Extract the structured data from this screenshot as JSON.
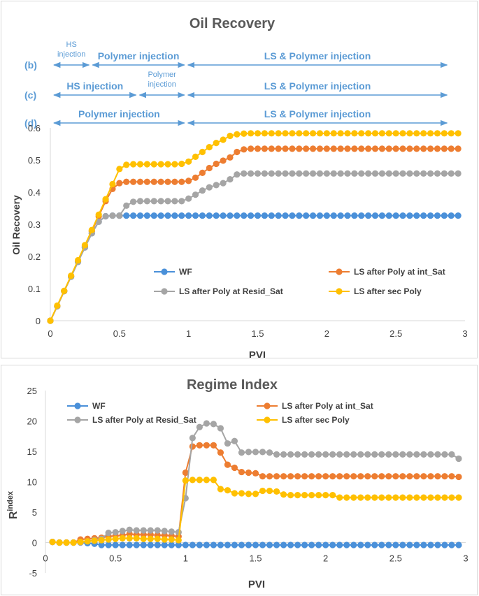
{
  "chart_data": [
    {
      "type": "line",
      "title": "Oil Recovery",
      "xlabel": "PVI",
      "ylabel": "Oil Recovery",
      "xlim": [
        0,
        3
      ],
      "ylim": [
        0,
        0.6
      ],
      "x_ticks": [
        "0",
        "0.5",
        "1",
        "1.5",
        "2",
        "2.5",
        "3"
      ],
      "y_ticks": [
        "0",
        "0.1",
        "0.2",
        "0.3",
        "0.4",
        "0.5",
        "0.6"
      ],
      "grid": false,
      "legend_placement": "bottom",
      "phase_annotations": [
        {
          "row_label": "(b)",
          "segments": [
            {
              "label": "HS injection",
              "from": 0.0,
              "to": 0.28
            },
            {
              "label": "Polymer injection",
              "from": 0.28,
              "to": 0.97
            },
            {
              "label": "LS & Polymer injection",
              "from": 0.97,
              "to": 2.87
            }
          ]
        },
        {
          "row_label": "(c)",
          "segments": [
            {
              "label": "HS injection",
              "from": 0.0,
              "to": 0.62
            },
            {
              "label": "Polymer injection",
              "from": 0.62,
              "to": 0.97
            },
            {
              "label": "LS & Polymer injection",
              "from": 0.97,
              "to": 2.87
            }
          ]
        },
        {
          "row_label": "(d)",
          "segments": [
            {
              "label": "Polymer injection",
              "from": 0.0,
              "to": 0.97
            },
            {
              "label": "LS & Polymer injection",
              "from": 0.97,
              "to": 2.87
            }
          ]
        }
      ],
      "series": [
        {
          "name": "WF",
          "color": "#4a90d9",
          "x_start": 0,
          "x_step": 0.05,
          "values": [
            0,
            0.045,
            0.092,
            0.137,
            0.183,
            0.228,
            0.272,
            0.308,
            0.325,
            0.327,
            0.327,
            0.327,
            0.327,
            0.327,
            0.327,
            0.327,
            0.327,
            0.327,
            0.327,
            0.327,
            0.327,
            0.327,
            0.327,
            0.327,
            0.327,
            0.327,
            0.327,
            0.327,
            0.327,
            0.327,
            0.327,
            0.327,
            0.327,
            0.327,
            0.327,
            0.327,
            0.327,
            0.327,
            0.327,
            0.327,
            0.327,
            0.327,
            0.327,
            0.327,
            0.327,
            0.327,
            0.327,
            0.327,
            0.327,
            0.327,
            0.327,
            0.327,
            0.327,
            0.327,
            0.327,
            0.327,
            0.327,
            0.327,
            0.327,
            0.327
          ]
        },
        {
          "name": "LS after Poly at int_Sat",
          "color": "#ed7d31",
          "x_start": 0,
          "x_step": 0.05,
          "values": [
            0,
            0.045,
            0.092,
            0.138,
            0.185,
            0.232,
            0.278,
            0.325,
            0.372,
            0.41,
            0.428,
            0.432,
            0.432,
            0.432,
            0.432,
            0.432,
            0.432,
            0.432,
            0.432,
            0.432,
            0.435,
            0.445,
            0.46,
            0.475,
            0.488,
            0.498,
            0.508,
            0.525,
            0.533,
            0.535,
            0.535,
            0.535,
            0.535,
            0.535,
            0.535,
            0.535,
            0.535,
            0.535,
            0.535,
            0.535,
            0.535,
            0.535,
            0.535,
            0.535,
            0.535,
            0.535,
            0.535,
            0.535,
            0.535,
            0.535,
            0.535,
            0.535,
            0.535,
            0.535,
            0.535,
            0.535,
            0.535,
            0.535,
            0.535,
            0.535
          ]
        },
        {
          "name": "LS after Poly at Resid_Sat",
          "color": "#a5a5a5",
          "x_start": 0,
          "x_step": 0.05,
          "values": [
            0,
            0.045,
            0.092,
            0.137,
            0.183,
            0.228,
            0.272,
            0.308,
            0.325,
            0.327,
            0.327,
            0.358,
            0.37,
            0.372,
            0.372,
            0.372,
            0.372,
            0.372,
            0.372,
            0.372,
            0.38,
            0.392,
            0.405,
            0.415,
            0.422,
            0.428,
            0.44,
            0.455,
            0.458,
            0.458,
            0.458,
            0.458,
            0.458,
            0.458,
            0.458,
            0.458,
            0.458,
            0.458,
            0.458,
            0.458,
            0.458,
            0.458,
            0.458,
            0.458,
            0.458,
            0.458,
            0.458,
            0.458,
            0.458,
            0.458,
            0.458,
            0.458,
            0.458,
            0.458,
            0.458,
            0.458,
            0.458,
            0.458,
            0.458,
            0.458
          ]
        },
        {
          "name": "LS after sec Poly",
          "color": "#ffc000",
          "x_start": 0,
          "x_step": 0.05,
          "values": [
            0,
            0.047,
            0.093,
            0.14,
            0.188,
            0.235,
            0.282,
            0.33,
            0.378,
            0.425,
            0.472,
            0.485,
            0.487,
            0.487,
            0.487,
            0.487,
            0.487,
            0.487,
            0.487,
            0.488,
            0.495,
            0.51,
            0.525,
            0.54,
            0.553,
            0.563,
            0.575,
            0.58,
            0.582,
            0.583,
            0.583,
            0.583,
            0.583,
            0.583,
            0.583,
            0.583,
            0.583,
            0.583,
            0.583,
            0.583,
            0.583,
            0.583,
            0.583,
            0.583,
            0.583,
            0.583,
            0.583,
            0.583,
            0.583,
            0.583,
            0.583,
            0.583,
            0.583,
            0.583,
            0.583,
            0.583,
            0.583,
            0.583,
            0.583,
            0.583
          ]
        }
      ]
    },
    {
      "type": "line",
      "title": "Regime Index",
      "xlabel": "PVI",
      "ylabel_main": "R",
      "ylabel_sup": "index",
      "xlim": [
        0,
        3
      ],
      "ylim": [
        -5,
        25
      ],
      "x_ticks": [
        "0",
        "0.5",
        "1",
        "1.5",
        "2",
        "2.5",
        "3"
      ],
      "y_ticks": [
        "-5",
        "0",
        "5",
        "10",
        "15",
        "20",
        "25"
      ],
      "grid": false,
      "legend_placement": "top",
      "series": [
        {
          "name": "WF",
          "color": "#4a90d9",
          "x_start": 0.05,
          "x_step": 0.05,
          "values": [
            0.1,
            0.0,
            0.0,
            0.0,
            0.0,
            -0.1,
            -0.2,
            -0.4,
            -0.4,
            -0.4,
            -0.4,
            -0.4,
            -0.4,
            -0.4,
            -0.4,
            -0.4,
            -0.4,
            -0.4,
            -0.4,
            -0.4,
            -0.4,
            -0.4,
            -0.4,
            -0.4,
            -0.4,
            -0.4,
            -0.4,
            -0.4,
            -0.4,
            -0.4,
            -0.4,
            -0.4,
            -0.4,
            -0.4,
            -0.4,
            -0.4,
            -0.4,
            -0.4,
            -0.4,
            -0.4,
            -0.4,
            -0.4,
            -0.4,
            -0.4,
            -0.4,
            -0.4,
            -0.4,
            -0.4,
            -0.4,
            -0.4,
            -0.4,
            -0.4,
            -0.4,
            -0.4,
            -0.4,
            -0.4,
            -0.4,
            -0.4,
            -0.4
          ]
        },
        {
          "name": "LS after Poly at int_Sat",
          "color": "#ed7d31",
          "x_start": 0.05,
          "x_step": 0.05,
          "values": [
            0.1,
            0.0,
            0.0,
            0.0,
            0.5,
            0.6,
            0.7,
            0.8,
            1.0,
            1.1,
            1.2,
            1.4,
            1.3,
            1.3,
            1.3,
            1.2,
            1.2,
            1.1,
            1.0,
            11.5,
            15.8,
            16.0,
            16.0,
            16.0,
            14.8,
            12.8,
            12.3,
            11.6,
            11.5,
            11.4,
            10.9,
            10.9,
            10.9,
            10.9,
            10.9,
            10.9,
            10.9,
            10.9,
            10.9,
            10.9,
            10.9,
            10.9,
            10.9,
            10.9,
            10.9,
            10.9,
            10.9,
            10.9,
            10.9,
            10.9,
            10.9,
            10.9,
            10.9,
            10.9,
            10.9,
            10.9,
            10.9,
            10.9,
            10.8
          ]
        },
        {
          "name": "LS after Poly at Resid_Sat",
          "color": "#a5a5a5",
          "x_start": 0.05,
          "x_step": 0.05,
          "values": [
            0.1,
            0.0,
            0.0,
            0.0,
            0.0,
            0.2,
            0.4,
            0.6,
            1.6,
            1.7,
            1.9,
            2.1,
            2.0,
            2.0,
            2.0,
            2.0,
            1.9,
            1.8,
            1.7,
            7.3,
            17.2,
            19.0,
            19.6,
            19.5,
            18.8,
            16.3,
            16.7,
            14.8,
            14.9,
            14.9,
            14.9,
            14.8,
            14.5,
            14.5,
            14.5,
            14.5,
            14.5,
            14.5,
            14.5,
            14.5,
            14.5,
            14.5,
            14.5,
            14.5,
            14.5,
            14.5,
            14.5,
            14.5,
            14.5,
            14.5,
            14.5,
            14.5,
            14.5,
            14.5,
            14.5,
            14.5,
            14.5,
            14.5,
            13.8
          ]
        },
        {
          "name": "LS after sec Poly",
          "color": "#ffc000",
          "x_start": 0.05,
          "x_step": 0.05,
          "values": [
            0.1,
            0.0,
            0.0,
            0.0,
            0.1,
            0.2,
            0.3,
            0.4,
            0.5,
            0.6,
            0.7,
            0.7,
            0.7,
            0.6,
            0.6,
            0.6,
            0.5,
            0.5,
            0.4,
            10.2,
            10.3,
            10.3,
            10.3,
            10.3,
            8.8,
            8.6,
            8.1,
            8.1,
            8.0,
            8.0,
            8.5,
            8.5,
            8.4,
            7.9,
            7.8,
            7.8,
            7.8,
            7.8,
            7.8,
            7.8,
            7.8,
            7.4,
            7.4,
            7.4,
            7.4,
            7.4,
            7.4,
            7.4,
            7.4,
            7.4,
            7.4,
            7.4,
            7.4,
            7.4,
            7.4,
            7.4,
            7.4,
            7.4,
            7.4
          ]
        }
      ]
    }
  ]
}
